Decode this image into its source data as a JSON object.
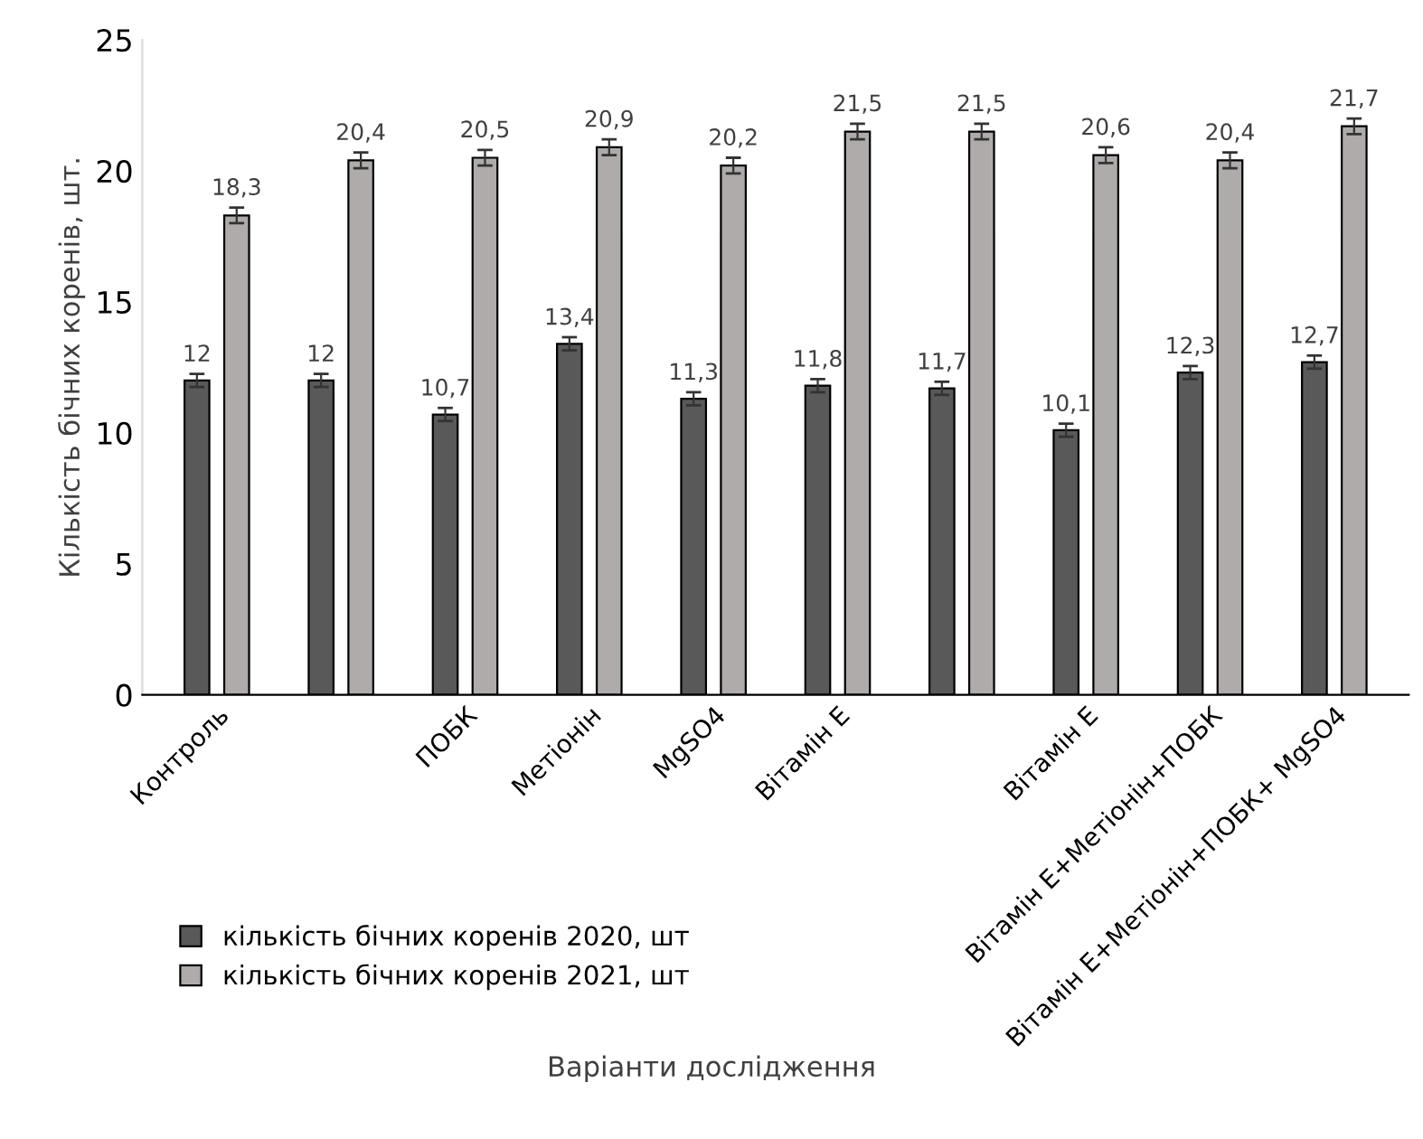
{
  "chart_data": {
    "type": "bar",
    "xlabel": "Варіанти дослідження",
    "ylabel": "Кількість бічних коренів, шт.",
    "categories": [
      "Контроль",
      null,
      "ПОБК",
      "Метіонін",
      "MgSO4",
      "Вітамін Е",
      null,
      "Вітамін Е",
      "Вітамін Е+Метіонін+ПОБК",
      "Вітамін Е+Метіонін+ПОБК+ MgSO4"
    ],
    "series": [
      {
        "name": "кількість бічних коренів 2020, шт",
        "color": "#595959",
        "values": [
          12,
          12,
          10.7,
          13.4,
          11.3,
          11.8,
          11.7,
          10.1,
          12.3,
          12.7
        ],
        "errors": [
          0.25,
          0.25,
          0.25,
          0.25,
          0.25,
          0.25,
          0.25,
          0.25,
          0.25,
          0.25
        ],
        "value_labels": [
          "12",
          "12",
          "10,7",
          "13,4",
          "11,3",
          "11,8",
          "11,7",
          "10,1",
          "12,3",
          "12,7"
        ]
      },
      {
        "name": "кількість бічних коренів 2021, шт",
        "color": "#afabab",
        "values": [
          18.3,
          20.4,
          20.5,
          20.9,
          20.2,
          21.5,
          21.5,
          20.6,
          20.4,
          21.7
        ],
        "errors": [
          0.3,
          0.3,
          0.3,
          0.3,
          0.3,
          0.3,
          0.3,
          0.3,
          0.3,
          0.3
        ],
        "value_labels": [
          "18,3",
          "20,4",
          "20,5",
          "20,9",
          "20,2",
          "21,5",
          "21,5",
          "20,6",
          "20,4",
          "21,7"
        ]
      }
    ],
    "ylim": [
      0,
      25
    ],
    "yticks": [
      0,
      5,
      10,
      15,
      20,
      25
    ],
    "grid": false,
    "legend": "bottom left"
  }
}
